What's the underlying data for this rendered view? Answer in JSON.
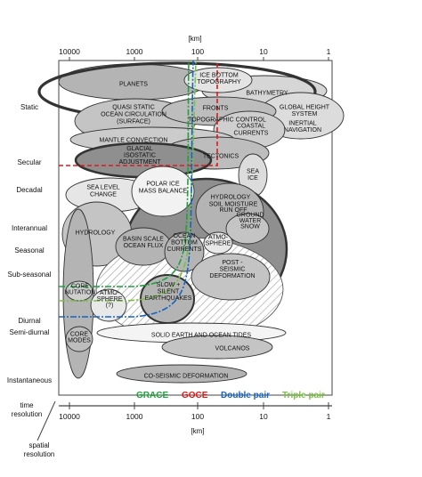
{
  "axes": {
    "top_unit": "[km]",
    "bottom_unit": "[km]",
    "x_ticks": [
      "10000",
      "1000",
      "100",
      "10",
      "1"
    ],
    "x_tick_values": [
      10000,
      1000,
      100,
      10,
      1
    ],
    "y_rows": [
      "Static",
      "Secular",
      "Decadal",
      "Interannual",
      "Seasonal",
      "Sub-seasonal",
      "Diurnal",
      "Semi-diurnal",
      "Instantaneous"
    ],
    "time_label": "time\nresolution",
    "spatial_label": "spatial\nresolution"
  },
  "phenomena": [
    {
      "id": "planets",
      "label": "PLANETS"
    },
    {
      "id": "ice-bottom",
      "label": "ICE BOTTOM\nTOPOGRAPHY"
    },
    {
      "id": "bathymetry",
      "label": "BATHYMETRY"
    },
    {
      "id": "quasi-static",
      "label": "QUASI STATIC\nOCEAN CIRCULATION\n(SURFACE)"
    },
    {
      "id": "fronts",
      "label": "FRONTS"
    },
    {
      "id": "topographic-control",
      "label": "TOPOGRAPHIC CONTROL"
    },
    {
      "id": "global-height",
      "label": "GLOBAL HEIGHT\nSYSTEM"
    },
    {
      "id": "coastal-currents",
      "label": "COASTAL\nCURRENTS"
    },
    {
      "id": "inertial-navigation",
      "label": "INERTIAL\nNAVIGATION"
    },
    {
      "id": "mantle-convection",
      "label": "MANTLE CONVECTION"
    },
    {
      "id": "gia",
      "label": "GLACIAL\nISOSTATIC\nADJUSTMENT"
    },
    {
      "id": "tectonics",
      "label": "TECTONICS"
    },
    {
      "id": "sea-ice",
      "label": "SEA\nICE"
    },
    {
      "id": "sea-level",
      "label": "SEA LEVEL\nCHANGE"
    },
    {
      "id": "polar-ice",
      "label": "POLAR ICE\nMASS BALANCE"
    },
    {
      "id": "hydrology-right",
      "label": "HYDROLOGY"
    },
    {
      "id": "soil-moisture",
      "label": "SOIL MOISTURE\nRUN OFF"
    },
    {
      "id": "ground-water",
      "label": "GROUND\nWATER\nSNOW"
    },
    {
      "id": "hydrology-left",
      "label": "HYDROLOGY"
    },
    {
      "id": "basin-flux",
      "label": "BASIN SCALE\nOCEAN FLUX"
    },
    {
      "id": "ocean-bottom",
      "label": "OCEAN\nBOTTOM\nCURRENTS"
    },
    {
      "id": "atmosphere-right",
      "label": "ATMO-\nSPHERE"
    },
    {
      "id": "post-seismic",
      "label": "POST -\nSEISMIC\nDEFORMATION"
    },
    {
      "id": "core-nutation",
      "label": "CORE\nNUTATION"
    },
    {
      "id": "atmosphere-left",
      "label": "ATMO-\nSPHERE\n(?)"
    },
    {
      "id": "slow-eq",
      "label": "SLOW +\nSILENT\nEARTHQUAKES"
    },
    {
      "id": "tides",
      "label": "SOLID EARTH AND OCEAN TIDES"
    },
    {
      "id": "core-modes",
      "label": "CORE\nMODES"
    },
    {
      "id": "volcanos",
      "label": "VOLCANOS"
    },
    {
      "id": "co-seismic",
      "label": "CO-SEISMIC DEFORMATION"
    }
  ],
  "legend": [
    {
      "label": "GRACE",
      "color": "#1aa33a"
    },
    {
      "label": "GOCE",
      "color": "#e01818"
    },
    {
      "label": "Double pair",
      "color": "#1565c0"
    },
    {
      "label": "Triple pair",
      "color": "#7ac143"
    }
  ],
  "colors": {
    "light": "#d6d6d6",
    "mid": "#b4b4b4",
    "dark": "#8f8f8f"
  }
}
